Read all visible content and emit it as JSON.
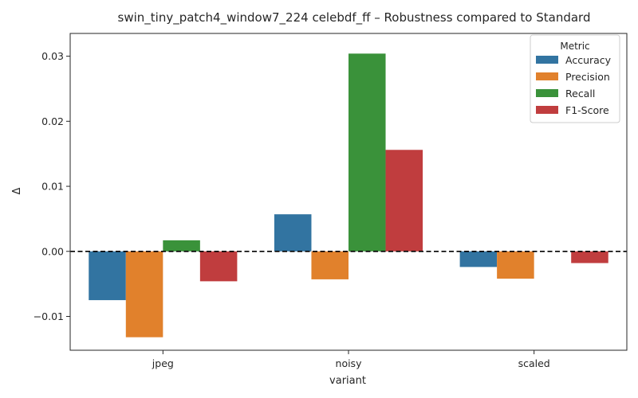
{
  "chart_data": {
    "type": "bar",
    "title": "swin_tiny_patch4_window7_224 celebdf_ff – Robustness compared to Standard",
    "xlabel": "variant",
    "ylabel": "Δ",
    "categories": [
      "jpeg",
      "noisy",
      "scaled"
    ],
    "series": [
      {
        "name": "Accuracy",
        "color": "#3274a1",
        "values": [
          -0.0075,
          0.0057,
          -0.0024
        ]
      },
      {
        "name": "Precision",
        "color": "#e1812c",
        "values": [
          -0.0132,
          -0.0043,
          -0.0042
        ]
      },
      {
        "name": "Recall",
        "color": "#3a923a",
        "values": [
          0.0017,
          0.0304,
          0.0
        ]
      },
      {
        "name": "F1-Score",
        "color": "#c03d3e",
        "values": [
          -0.0046,
          0.0156,
          -0.0018
        ]
      }
    ],
    "ylim": [
      -0.0152,
      0.0335
    ],
    "yticks": [
      -0.01,
      0.0,
      0.01,
      0.02,
      0.03
    ],
    "ytick_labels": [
      "−0.01",
      "0.00",
      "0.01",
      "0.02",
      "0.03"
    ],
    "reference_line": {
      "y": 0.0,
      "style": "dashed",
      "color": "#000000"
    },
    "legend": {
      "title": "Metric",
      "position": "top-right"
    },
    "grid": false
  }
}
